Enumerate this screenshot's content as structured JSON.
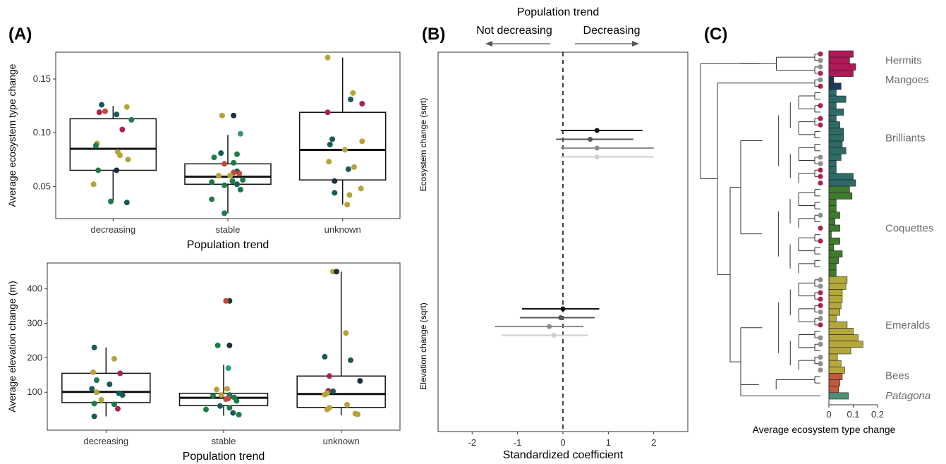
{
  "chart_data": [
    {
      "panel": "(A)",
      "type": "box",
      "xlabel": "Population trend",
      "ylabel": "Average ecosystem type change",
      "categories": [
        "decreasing",
        "stable",
        "unknown"
      ],
      "yticks": [
        0.05,
        0.1,
        0.15
      ],
      "ylim": [
        0.02,
        0.175
      ],
      "boxes": [
        {
          "q1": 0.065,
          "median": 0.085,
          "q3": 0.113,
          "whisker_low": 0.035,
          "whisker_high": 0.125
        },
        {
          "q1": 0.052,
          "median": 0.059,
          "q3": 0.071,
          "whisker_low": 0.025,
          "whisker_high": 0.098
        },
        {
          "q1": 0.056,
          "median": 0.084,
          "q3": 0.119,
          "whisker_low": 0.033,
          "whisker_high": 0.17
        }
      ],
      "points": [
        [
          [
            -0.1,
            0.126,
            "#1a5a56"
          ],
          [
            0.12,
            0.124,
            "#b5a33a"
          ],
          [
            0.03,
            0.117,
            "#1a5a56"
          ],
          [
            -0.12,
            0.119,
            "#a8254f"
          ],
          [
            -0.07,
            0.12,
            "#c24a3a"
          ],
          [
            0.16,
            0.112,
            "#1f7a4a"
          ],
          [
            0.08,
            0.103,
            "#a8254f"
          ],
          [
            -0.14,
            0.09,
            "#b5a33a"
          ],
          [
            -0.15,
            0.088,
            "#1f7a4a"
          ],
          [
            0.04,
            0.082,
            "#b5a33a"
          ],
          [
            0.06,
            0.079,
            "#b5a33a"
          ],
          [
            0.13,
            0.075,
            "#b5a33a"
          ],
          [
            -0.13,
            0.065,
            "#1f7a4a"
          ],
          [
            0.03,
            0.065,
            "#17323a"
          ],
          [
            -0.17,
            0.052,
            "#b5a33a"
          ],
          [
            -0.02,
            0.036,
            "#1f7a4a"
          ],
          [
            0.12,
            0.035,
            "#1a5a56"
          ]
        ],
        [
          [
            -0.05,
            0.116,
            "#b5a33a"
          ],
          [
            0.05,
            0.116,
            "#17323a"
          ],
          [
            0.11,
            0.099,
            "#2d9c79"
          ],
          [
            -0.06,
            0.081,
            "#1a5a56"
          ],
          [
            0.08,
            0.08,
            "#1f7a4a"
          ],
          [
            -0.12,
            0.077,
            "#1f7a4a"
          ],
          [
            0.05,
            0.072,
            "#1f7a4a"
          ],
          [
            -0.03,
            0.071,
            "#c24a3a"
          ],
          [
            0.08,
            0.064,
            "#1a5a56"
          ],
          [
            0.05,
            0.063,
            "#c24a3a"
          ],
          [
            0.1,
            0.062,
            "#c24a3a"
          ],
          [
            0.02,
            0.06,
            "#b5a33a"
          ],
          [
            -0.08,
            0.06,
            "#b5a33a"
          ],
          [
            0.13,
            0.056,
            "#1f7a4a"
          ],
          [
            0.04,
            0.055,
            "#1f7a4a"
          ],
          [
            -0.14,
            0.054,
            "#1f7a4a"
          ],
          [
            0.08,
            0.052,
            "#1a5a56"
          ],
          [
            -0.03,
            0.051,
            "#1f7a4a"
          ],
          [
            0.11,
            0.047,
            "#1f7a4a"
          ],
          [
            -0.14,
            0.038,
            "#1f7a4a"
          ],
          [
            -0.03,
            0.025,
            "#1f7a4a"
          ]
        ],
        [
          [
            -0.13,
            0.17,
            "#b5a33a"
          ],
          [
            0.09,
            0.137,
            "#b5a33a"
          ],
          [
            0.07,
            0.131,
            "#1a5a56"
          ],
          [
            0.17,
            0.127,
            "#a8254f"
          ],
          [
            -0.13,
            0.119,
            "#a8254f"
          ],
          [
            -0.09,
            0.094,
            "#1a5a56"
          ],
          [
            0.17,
            0.092,
            "#b5a33a"
          ],
          [
            -0.11,
            0.089,
            "#1a5a56"
          ],
          [
            0.02,
            0.084,
            "#b5a33a"
          ],
          [
            -0.12,
            0.073,
            "#b5a33a"
          ],
          [
            0.1,
            0.068,
            "#b5a33a"
          ],
          [
            0.05,
            0.066,
            "#1a5a56"
          ],
          [
            -0.07,
            0.055,
            "#17323a"
          ],
          [
            0.16,
            0.048,
            "#b5a33a"
          ],
          [
            -0.07,
            0.044,
            "#1a5a56"
          ],
          [
            0.06,
            0.042,
            "#b5a33a"
          ],
          [
            0.04,
            0.033,
            "#b5a33a"
          ]
        ]
      ]
    },
    {
      "panel": "",
      "type": "box",
      "xlabel": "Population trend",
      "ylabel": "Average elevation change (m)",
      "categories": [
        "decreasing",
        "stable",
        "unknown"
      ],
      "yticks": [
        100,
        200,
        300,
        400
      ],
      "ylim": [
        -10,
        475
      ],
      "boxes": [
        {
          "q1": 70,
          "median": 101,
          "q3": 155,
          "whisker_low": 30,
          "whisker_high": 230
        },
        {
          "q1": 61,
          "median": 84,
          "q3": 97,
          "whisker_low": 32,
          "whisker_high": 180
        },
        {
          "q1": 56,
          "median": 95,
          "q3": 147,
          "whisker_low": 33,
          "whisker_high": 450
        }
      ],
      "points": [
        [
          [
            -0.1,
            230,
            "#1a5a56"
          ],
          [
            0.07,
            197,
            "#b5a33a"
          ],
          [
            0.12,
            155,
            "#a8254f"
          ],
          [
            -0.11,
            158,
            "#b5a33a"
          ],
          [
            -0.08,
            135,
            "#1f7a4a"
          ],
          [
            0.03,
            123,
            "#1a5a56"
          ],
          [
            -0.12,
            110,
            "#1a5a56"
          ],
          [
            -0.08,
            100,
            "#b5a33a"
          ],
          [
            0.11,
            97,
            "#1a5a56"
          ],
          [
            0.14,
            92,
            "#1a5a56"
          ],
          [
            -0.04,
            78,
            "#b5a33a"
          ],
          [
            -0.1,
            67,
            "#1f7a4a"
          ],
          [
            0.07,
            65,
            "#1f7a4a"
          ],
          [
            0.1,
            52,
            "#a8254f"
          ],
          [
            -0.1,
            30,
            "#1a5a56"
          ]
        ],
        [
          [
            0.05,
            365,
            "#17323a"
          ],
          [
            0.02,
            365,
            "#c24a3a"
          ],
          [
            0.05,
            236,
            "#17323a"
          ],
          [
            -0.05,
            236,
            "#1f7a4a"
          ],
          [
            0.04,
            170,
            "#2d9c79"
          ],
          [
            -0.06,
            108,
            "#b5a33a"
          ],
          [
            0.03,
            110,
            "#b5a33a"
          ],
          [
            0.05,
            92,
            "#1f7a4a"
          ],
          [
            -0.02,
            92,
            "#b5a33a"
          ],
          [
            0.09,
            85,
            "#1f7a4a"
          ],
          [
            0.04,
            82,
            "#c24a3a"
          ],
          [
            0.02,
            80,
            "#c24a3a"
          ],
          [
            -0.09,
            90,
            "#1f7a4a"
          ],
          [
            0.11,
            75,
            "#1f7a4a"
          ],
          [
            -0.03,
            60,
            "#1a5a56"
          ],
          [
            0.05,
            55,
            "#1f7a4a"
          ],
          [
            -0.15,
            50,
            "#1f7a4a"
          ],
          [
            0.08,
            40,
            "#1a5a56"
          ],
          [
            0.13,
            35,
            "#1f7a4a"
          ]
        ],
        [
          [
            -0.07,
            450,
            "#b5a33a"
          ],
          [
            -0.04,
            450,
            "#17323a"
          ],
          [
            0.04,
            272,
            "#b5a33a"
          ],
          [
            -0.14,
            203,
            "#1a5a56"
          ],
          [
            0.08,
            193,
            "#1a5a56"
          ],
          [
            -0.1,
            147,
            "#a8254f"
          ],
          [
            0.16,
            133,
            "#17323a"
          ],
          [
            -0.11,
            104,
            "#a8254f"
          ],
          [
            -0.07,
            103,
            "#1a5a56"
          ],
          [
            -0.12,
            97,
            "#b5a33a"
          ],
          [
            -0.14,
            93,
            "#b5a33a"
          ],
          [
            0.05,
            64,
            "#b5a33a"
          ],
          [
            -0.1,
            55,
            "#b5a33a"
          ],
          [
            -0.12,
            50,
            "#b5a33a"
          ],
          [
            0.12,
            38,
            "#b5a33a"
          ],
          [
            0.14,
            36,
            "#b5a33a"
          ]
        ]
      ]
    },
    {
      "panel": "(B)",
      "type": "forest",
      "title": "Population trend",
      "left_label": "Not decreasing",
      "right_label": "Decreasing",
      "xlabel": "Standardized coefficient",
      "xticks": [
        -2,
        -1,
        0,
        1,
        2
      ],
      "xlim": [
        -2.75,
        2.75
      ],
      "zero_line": true,
      "groups": [
        {
          "label": "Ecosystem change (sqrt)",
          "rows": [
            {
              "est": 0.75,
              "lo": -0.05,
              "hi": 1.75,
              "color": "#111111"
            },
            {
              "est": 0.6,
              "lo": -0.15,
              "hi": 1.55,
              "color": "#555555"
            },
            {
              "est": 0.75,
              "lo": -0.05,
              "hi": 2.0,
              "color": "#8c8c8c"
            },
            {
              "est": 0.75,
              "lo": -0.05,
              "hi": 2.0,
              "color": "#cfcfcf"
            }
          ]
        },
        {
          "label": "Elevation change (sqrt)",
          "rows": [
            {
              "est": 0.0,
              "lo": -0.9,
              "hi": 0.8,
              "color": "#111111"
            },
            {
              "est": -0.05,
              "lo": -0.95,
              "hi": 0.7,
              "color": "#555555"
            },
            {
              "est": -0.3,
              "lo": -1.5,
              "hi": 0.45,
              "color": "#8c8c8c"
            },
            {
              "est": -0.2,
              "lo": -1.35,
              "hi": 0.55,
              "color": "#cfcfcf"
            }
          ]
        }
      ]
    },
    {
      "panel": "(C)",
      "type": "bar",
      "orientation": "horizontal",
      "xlabel": "Average ecosystem type change",
      "xticks": [
        0,
        0.1,
        0.2
      ],
      "tick_labels": [
        "0",
        "0.1",
        "0.2"
      ],
      "xlim": [
        0,
        0.2
      ],
      "values": [
        0.1,
        0.085,
        0.11,
        0.1,
        0.02,
        0.05,
        0.03,
        0.07,
        0.03,
        0.06,
        0.03,
        0.045,
        0.06,
        0.06,
        0.055,
        0.07,
        0.05,
        0.03,
        0.03,
        0.1,
        0.11,
        0.085,
        0.095,
        0.03,
        0.03,
        0.045,
        0.025,
        0.045,
        0.01,
        0.045,
        0.02,
        0.055,
        0.04,
        0.03,
        0.03,
        0.075,
        0.07,
        0.055,
        0.055,
        0.05,
        0.045,
        0.03,
        0.075,
        0.1,
        0.12,
        0.14,
        0.09,
        0.035,
        0.05,
        0.065,
        0.055,
        0.045,
        0.04,
        0.08
      ],
      "tip_dots": [
        "#a8254f",
        "#8f8f8f",
        "#8f8f8f",
        "#a8254f",
        "#8f8f8f",
        "#a8254f",
        "",
        "",
        "#a8254f",
        "",
        "#a8254f",
        "#a8254f",
        "",
        "",
        "",
        "",
        "#8f8f8f",
        "#8f8f8f",
        "#a8254f",
        "#a8254f",
        "#a8254f",
        "",
        "",
        "",
        "",
        "#8f8f8f",
        "",
        "#a8254f",
        "",
        "#a8254f",
        "",
        "",
        "",
        "",
        "",
        "#8f8f8f",
        "#8f8f8f",
        "#a8254f",
        "#a8254f",
        "#a8254f",
        "#8f8f8f",
        "#8f8f8f",
        "#a8254f",
        "",
        "#8f8f8f",
        "#8f8f8f",
        "",
        "#8f8f8f",
        "#8f8f8f",
        "#8f8f8f",
        "",
        "",
        "",
        ""
      ],
      "bar_colors": [
        "#b0185a",
        "#b0185a",
        "#b0185a",
        "#b0185a",
        "#1c3a5a",
        "#1c3a5a",
        "#2e6a66",
        "#2e6a66",
        "#2e6a66",
        "#2e6a66",
        "#2e6a66",
        "#2e6a66",
        "#2e6a66",
        "#2e6a66",
        "#2e6a66",
        "#2e6a66",
        "#2e6a66",
        "#2e6a66",
        "#2e6a66",
        "#2e6a66",
        "#2e6a66",
        "#3f7a2f",
        "#3f7a2f",
        "#3f7a2f",
        "#3f7a2f",
        "#3f7a2f",
        "#3f7a2f",
        "#3f7a2f",
        "#3f7a2f",
        "#3f7a2f",
        "#3f7a2f",
        "#3f7a2f",
        "#3f7a2f",
        "#3f7a2f",
        "#3f7a2f",
        "#b5a83a",
        "#b5a83a",
        "#b5a83a",
        "#b5a83a",
        "#b5a83a",
        "#b5a83a",
        "#b5a83a",
        "#b5a83a",
        "#b5a83a",
        "#b5a83a",
        "#b5a83a",
        "#b5a83a",
        "#b5a83a",
        "#b5a83a",
        "#b5a83a",
        "#c4583f",
        "#c4583f",
        "#c4583f",
        "#4e8f78"
      ],
      "clades": [
        {
          "label": "Hermits",
          "row": 1.5
        },
        {
          "label": "Mangoes",
          "row": 4.5
        },
        {
          "label": "Brilliants",
          "row": 13.5
        },
        {
          "label": "Coquettes",
          "row": 27.5
        },
        {
          "label": "Emeralds",
          "row": 42.5
        },
        {
          "label": "Bees",
          "row": 51
        },
        {
          "label": "Patagona",
          "row": 53,
          "italic": true
        }
      ]
    }
  ]
}
